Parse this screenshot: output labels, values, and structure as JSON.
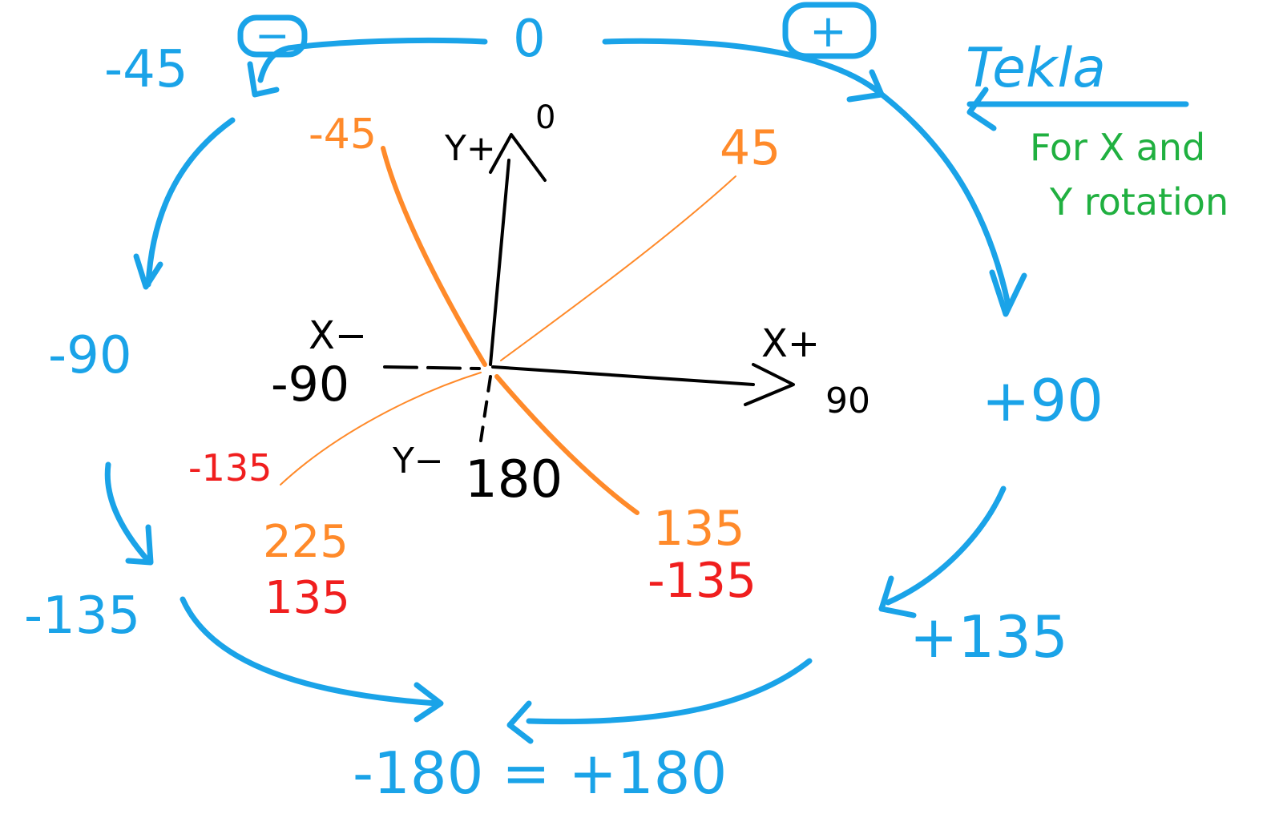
{
  "outer_ring": {
    "top": "0",
    "minus_sign": "−",
    "plus_sign": "+",
    "top_left": "-45",
    "left": "-90",
    "bottom_left": "-135",
    "bottom": "-180 = +180",
    "bottom_right": "+135",
    "right": "+90",
    "colors": {
      "ring": "#1aa3e8"
    }
  },
  "note": {
    "title": "Tekla",
    "line1": "For X and",
    "line2": "Y rotation"
  },
  "axes": {
    "y_plus": "Y+",
    "y_plus_value": "0",
    "x_minus": "X−",
    "x_minus_value": "-90",
    "x_plus": "X+",
    "x_plus_value": "90",
    "y_minus": "Y−",
    "y_minus_value": "180"
  },
  "diagonals": {
    "upper_left": "-45",
    "upper_right": "45",
    "lower_left_red": "-135",
    "lower_left_orange": "225",
    "lower_left_red_2": "135",
    "lower_right_orange": "135",
    "lower_right_red": "-135",
    "colors": {
      "orange": "#ff8a2a",
      "red": "#f01e1e"
    }
  }
}
